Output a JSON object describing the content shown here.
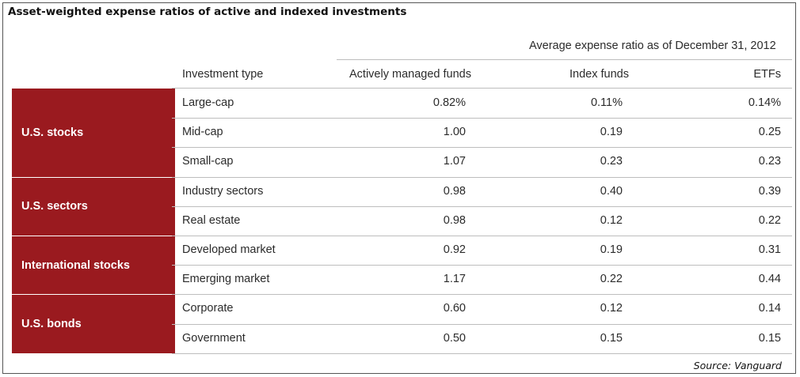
{
  "title": "Asset-weighted expense ratios of active and indexed investments",
  "super_header": "Average expense ratio as of December 31, 2012",
  "source": "Source: Vanguard",
  "colors": {
    "group_bg": "#9a1a1f",
    "group_text": "#ffffff",
    "rule": "#bdbdbd"
  },
  "chart_data": {
    "type": "table",
    "title": "Asset-weighted expense ratios of active and indexed investments",
    "columns": [
      "Investment type",
      "Actively managed funds",
      "Index funds",
      "ETFs"
    ],
    "groups": [
      {
        "name": "U.S. stocks",
        "rows": 3
      },
      {
        "name": "U.S. sectors",
        "rows": 2
      },
      {
        "name": "International stocks",
        "rows": 2
      },
      {
        "name": "U.S. bonds",
        "rows": 2
      }
    ],
    "rows": [
      {
        "type": "Large-cap",
        "active": "0.82%",
        "index": "0.11%",
        "etf": "0.14%"
      },
      {
        "type": "Mid-cap",
        "active": "1.00",
        "index": "0.19",
        "etf": "0.25"
      },
      {
        "type": "Small-cap",
        "active": "1.07",
        "index": "0.23",
        "etf": "0.23"
      },
      {
        "type": "Industry sectors",
        "active": "0.98",
        "index": "0.40",
        "etf": "0.39"
      },
      {
        "type": "Real estate",
        "active": "0.98",
        "index": "0.12",
        "etf": "0.22"
      },
      {
        "type": "Developed market",
        "active": "0.92",
        "index": "0.19",
        "etf": "0.31"
      },
      {
        "type": "Emerging market",
        "active": "1.17",
        "index": "0.22",
        "etf": "0.44"
      },
      {
        "type": "Corporate",
        "active": "0.60",
        "index": "0.12",
        "etf": "0.14"
      },
      {
        "type": "Government",
        "active": "0.50",
        "index": "0.15",
        "etf": "0.15"
      }
    ]
  }
}
